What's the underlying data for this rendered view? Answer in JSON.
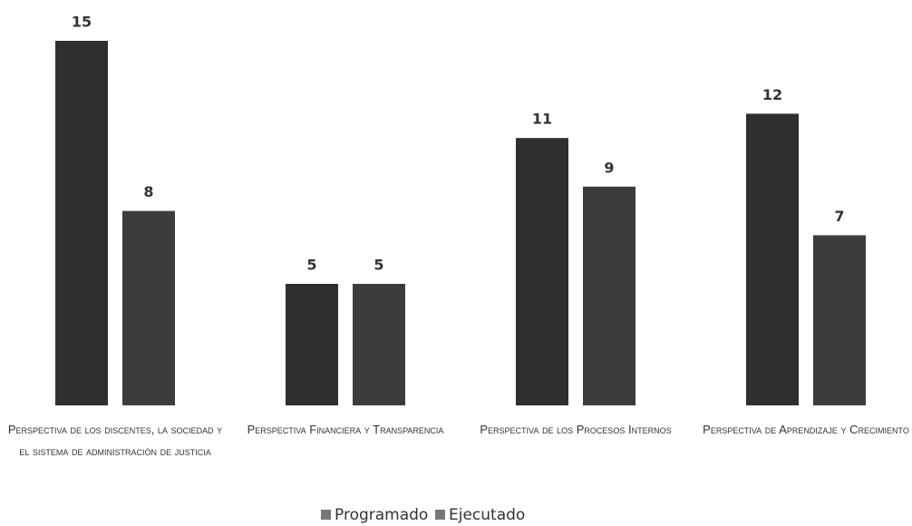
{
  "chart_data": {
    "type": "bar",
    "categories": [
      "Perspectiva de los discentes, la sociedad y el sistema de administración de justicia",
      "Perspectiva Financiera y Transparencia",
      "Perspectiva de los Procesos Internos",
      "Perspectiva de Aprendizaje y Crecimiento"
    ],
    "series": [
      {
        "name": "Programado",
        "color": "#2f2f2f",
        "values": [
          15,
          5,
          11,
          12
        ]
      },
      {
        "name": "Ejecutado",
        "color": "#3c3c3c",
        "values": [
          8,
          5,
          9,
          7
        ]
      }
    ],
    "legend": "bottom"
  }
}
